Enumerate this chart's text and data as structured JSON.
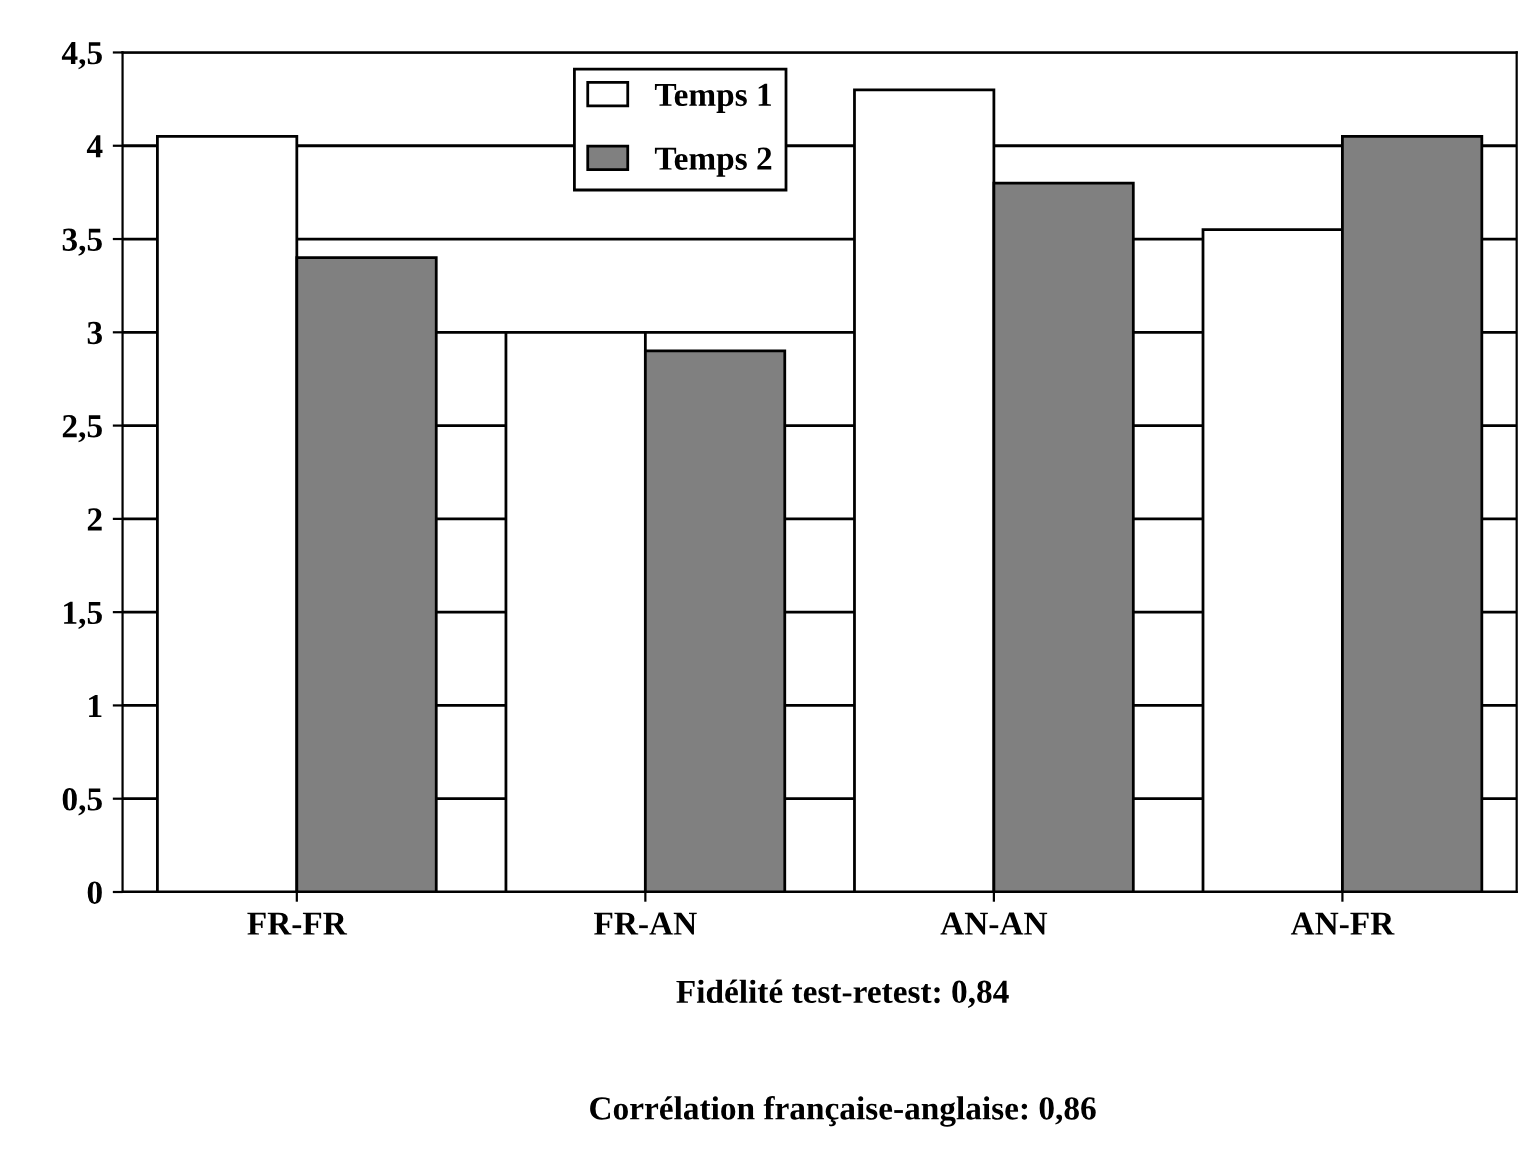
{
  "chart_data": {
    "type": "bar",
    "categories": [
      "FR-FR",
      "FR-AN",
      "AN-AN",
      "AN-FR"
    ],
    "series": [
      {
        "name": "Temps 1",
        "color": "#ffffff",
        "values": [
          4.05,
          3.0,
          4.3,
          3.55
        ]
      },
      {
        "name": "Temps 2",
        "color": "#808080",
        "values": [
          3.4,
          2.9,
          3.8,
          4.05
        ]
      }
    ],
    "ylim": [
      0,
      4.5
    ],
    "yticks": [
      {
        "value": 0,
        "label": "0"
      },
      {
        "value": 0.5,
        "label": "0,5"
      },
      {
        "value": 1,
        "label": "1"
      },
      {
        "value": 1.5,
        "label": "1,5"
      },
      {
        "value": 2,
        "label": "2"
      },
      {
        "value": 2.5,
        "label": "2,5"
      },
      {
        "value": 3,
        "label": "3"
      },
      {
        "value": 3.5,
        "label": "3,5"
      },
      {
        "value": 4,
        "label": "4"
      },
      {
        "value": 4.5,
        "label": "4,5"
      }
    ],
    "grid": "y",
    "legend": "top",
    "annotations": [
      "Fidélité test-retest: 0,84",
      "Corrélation française-anglaise: 0,86"
    ]
  }
}
